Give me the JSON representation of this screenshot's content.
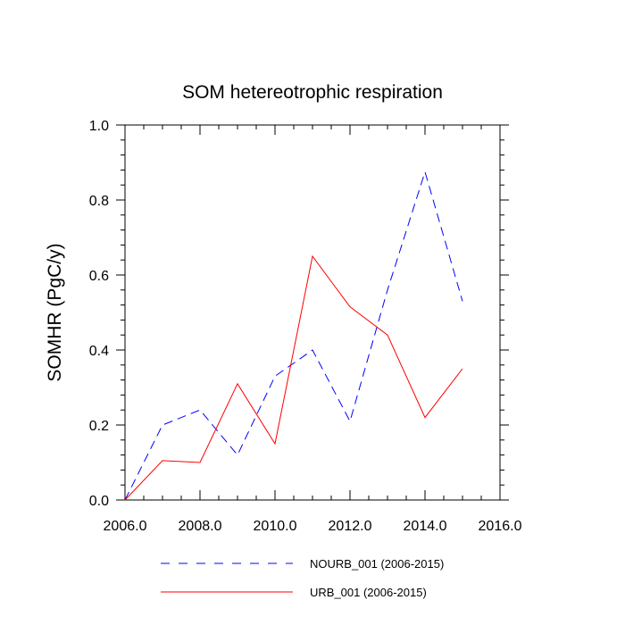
{
  "chart_data": {
    "type": "line",
    "title": "SOM hetereotrophic respiration",
    "xlabel": "",
    "ylabel": "SOMHR  (PgC/y)",
    "xlim": [
      2006,
      2016
    ],
    "ylim": [
      0,
      1
    ],
    "x_ticks": [
      2006,
      2008,
      2010,
      2012,
      2014,
      2016
    ],
    "x_tick_labels": [
      "2006.0",
      "2008.0",
      "2010.0",
      "2012.0",
      "2014.0",
      "2016.0"
    ],
    "y_ticks": [
      0,
      0.2,
      0.4,
      0.6,
      0.8,
      1.0
    ],
    "y_tick_labels": [
      "0.0",
      "0.2",
      "0.4",
      "0.6",
      "0.8",
      "1.0"
    ],
    "grid": false,
    "legend_position": "bottom",
    "x": [
      2006,
      2007,
      2008,
      2009,
      2010,
      2011,
      2012,
      2013,
      2014,
      2015
    ],
    "series": [
      {
        "name": "NOURB_001 (2006-2015)",
        "color": "#0000ff",
        "style": "dashed",
        "values": [
          0.0,
          0.2,
          0.24,
          0.12,
          0.33,
          0.4,
          0.21,
          0.56,
          0.875,
          0.53
        ]
      },
      {
        "name": "URB_001 (2006-2015)",
        "color": "#ff0000",
        "style": "solid",
        "values": [
          0.0,
          0.105,
          0.1,
          0.31,
          0.15,
          0.65,
          0.515,
          0.44,
          0.22,
          0.35
        ]
      }
    ]
  }
}
